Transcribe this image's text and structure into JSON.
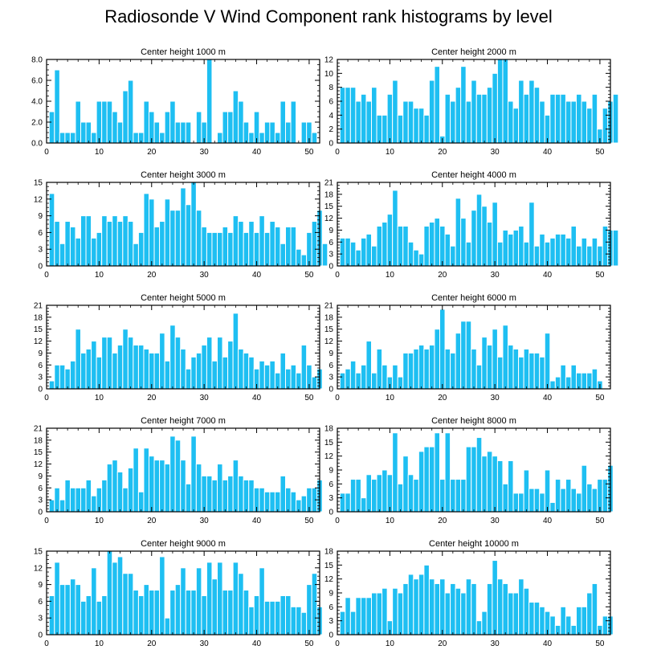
{
  "title": "Radiosonde V Wind Component rank histograms by level",
  "colors": {
    "bar": "#1EBFF2",
    "bar_edge": "#ffffff",
    "axis": "#000000",
    "background": "#ffffff"
  },
  "chart_data": [
    {
      "type": "bar",
      "title": "Center height 1000 m",
      "xlabel": "",
      "ylabel": "",
      "xlim": [
        0,
        52
      ],
      "ylim": [
        0,
        8
      ],
      "yticks": [
        0,
        2,
        4,
        6,
        8
      ],
      "ytick_labels": [
        "0.0",
        "2.0",
        "4.0",
        "6.0",
        "8.0"
      ],
      "xticks": [
        0,
        10,
        20,
        30,
        40,
        50
      ],
      "values": [
        3,
        7,
        1,
        1,
        1,
        4,
        2,
        2,
        1,
        4,
        4,
        4,
        3,
        2,
        5,
        6,
        1,
        1,
        4,
        3,
        2,
        1,
        3,
        4,
        2,
        2,
        2,
        0,
        3,
        2,
        8,
        0,
        1,
        3,
        3,
        5,
        4,
        2,
        1,
        3,
        1,
        2,
        2,
        1,
        4,
        2,
        4,
        0,
        2,
        2,
        1
      ]
    },
    {
      "type": "bar",
      "title": "Center height 2000 m",
      "xlabel": "",
      "ylabel": "",
      "xlim": [
        0,
        52
      ],
      "ylim": [
        0,
        12
      ],
      "yticks": [
        0,
        2,
        4,
        6,
        8,
        10,
        12
      ],
      "ytick_labels": [
        "0",
        "2",
        "4",
        "6",
        "8",
        "10",
        "12"
      ],
      "xticks": [
        0,
        10,
        20,
        30,
        40,
        50
      ],
      "values": [
        8,
        8,
        8,
        6,
        7,
        6,
        8,
        4,
        4,
        7,
        9,
        4,
        6,
        6,
        5,
        5,
        4,
        9,
        11,
        1,
        7,
        6,
        8,
        11,
        6,
        9,
        7,
        7,
        8,
        10,
        12,
        12,
        6,
        5,
        9,
        7,
        9,
        8,
        6,
        4,
        7,
        7,
        7,
        6,
        6,
        7,
        6,
        5,
        7,
        2,
        5,
        6,
        7
      ]
    },
    {
      "type": "bar",
      "title": "Center height 3000 m",
      "xlabel": "",
      "ylabel": "",
      "xlim": [
        0,
        52
      ],
      "ylim": [
        0,
        15
      ],
      "yticks": [
        0,
        3,
        6,
        9,
        12,
        15
      ],
      "ytick_labels": [
        "0",
        "3",
        "6",
        "9",
        "12",
        "15"
      ],
      "xticks": [
        0,
        10,
        20,
        30,
        40,
        50
      ],
      "values": [
        13,
        8,
        4,
        8,
        7,
        5,
        9,
        9,
        5,
        6,
        9,
        8,
        9,
        8,
        9,
        8,
        4,
        6,
        13,
        12,
        7,
        8,
        12,
        10,
        10,
        14,
        11,
        15,
        10,
        7,
        6,
        6,
        6,
        7,
        6,
        9,
        8,
        6,
        8,
        6,
        9,
        6,
        8,
        7,
        4,
        7,
        7,
        3,
        2,
        6,
        8,
        10,
        4
      ]
    },
    {
      "type": "bar",
      "title": "Center height 4000 m",
      "xlabel": "",
      "ylabel": "",
      "xlim": [
        0,
        52
      ],
      "ylim": [
        0,
        21
      ],
      "yticks": [
        0,
        3,
        6,
        9,
        12,
        15,
        18,
        21
      ],
      "ytick_labels": [
        "0",
        "3",
        "6",
        "9",
        "12",
        "15",
        "18",
        "21"
      ],
      "xticks": [
        0,
        10,
        20,
        30,
        40,
        50
      ],
      "values": [
        7,
        7,
        6,
        4,
        7,
        8,
        5,
        10,
        11,
        13,
        19,
        10,
        10,
        6,
        4,
        3,
        10,
        11,
        12,
        10,
        8,
        5,
        17,
        12,
        6,
        14,
        18,
        15,
        11,
        16,
        6,
        9,
        8,
        9,
        10,
        6,
        16,
        5,
        8,
        6,
        7,
        8,
        8,
        7,
        10,
        5,
        7,
        5,
        7,
        5,
        10,
        9,
        9
      ]
    },
    {
      "type": "bar",
      "title": "Center height 5000 m",
      "xlabel": "",
      "ylabel": "",
      "xlim": [
        0,
        52
      ],
      "ylim": [
        0,
        21
      ],
      "yticks": [
        0,
        3,
        6,
        9,
        12,
        15,
        18,
        21
      ],
      "ytick_labels": [
        "0",
        "3",
        "6",
        "9",
        "12",
        "15",
        "18",
        "21"
      ],
      "xticks": [
        0,
        10,
        20,
        30,
        40,
        50
      ],
      "values": [
        2,
        6,
        6,
        5,
        7,
        15,
        9,
        10,
        12,
        8,
        13,
        13,
        9,
        11,
        15,
        13,
        11,
        11,
        10,
        9,
        9,
        14,
        7,
        16,
        13,
        10,
        5,
        8,
        9,
        11,
        13,
        7,
        13,
        8,
        12,
        19,
        10,
        9,
        8,
        5,
        7,
        6,
        7,
        4,
        9,
        5,
        6,
        4,
        11,
        6,
        3,
        5
      ]
    },
    {
      "type": "bar",
      "title": "Center height 6000 m",
      "xlabel": "",
      "ylabel": "",
      "xlim": [
        0,
        52
      ],
      "ylim": [
        0,
        21
      ],
      "yticks": [
        0,
        3,
        6,
        9,
        12,
        15,
        18,
        21
      ],
      "ytick_labels": [
        "0",
        "3",
        "6",
        "9",
        "12",
        "15",
        "18",
        "21"
      ],
      "xticks": [
        0,
        10,
        20,
        30,
        40,
        50
      ],
      "values": [
        4,
        5,
        7,
        4,
        6,
        12,
        4,
        10,
        6,
        3,
        6,
        3,
        9,
        9,
        10,
        11,
        10,
        11,
        15,
        20,
        10,
        9,
        14,
        17,
        17,
        10,
        6,
        13,
        11,
        15,
        8,
        16,
        11,
        10,
        8,
        10,
        9,
        9,
        8,
        14,
        2,
        3,
        6,
        3,
        6,
        4,
        4,
        4,
        5,
        2
      ]
    },
    {
      "type": "bar",
      "title": "Center height 7000 m",
      "xlabel": "",
      "ylabel": "",
      "xlim": [
        0,
        52
      ],
      "ylim": [
        0,
        21
      ],
      "yticks": [
        0,
        3,
        6,
        9,
        12,
        15,
        18,
        21
      ],
      "ytick_labels": [
        "0",
        "3",
        "6",
        "9",
        "12",
        "15",
        "18",
        "21"
      ],
      "xticks": [
        0,
        10,
        20,
        30,
        40,
        50
      ],
      "values": [
        3,
        6,
        3,
        8,
        6,
        6,
        6,
        8,
        4,
        6,
        8,
        12,
        13,
        10,
        6,
        11,
        16,
        5,
        16,
        14,
        13,
        13,
        12,
        19,
        18,
        13,
        7,
        19,
        12,
        9,
        9,
        8,
        12,
        8,
        9,
        13,
        9,
        8,
        8,
        6,
        6,
        5,
        5,
        5,
        9,
        6,
        5,
        3,
        4,
        6,
        6,
        8
      ]
    },
    {
      "type": "bar",
      "title": "Center height 8000 m",
      "xlabel": "",
      "ylabel": "",
      "xlim": [
        0,
        52
      ],
      "ylim": [
        0,
        18
      ],
      "yticks": [
        0,
        3,
        6,
        9,
        12,
        15,
        18
      ],
      "ytick_labels": [
        "0",
        "3",
        "6",
        "9",
        "12",
        "15",
        "18"
      ],
      "xticks": [
        0,
        10,
        20,
        30,
        40,
        50
      ],
      "values": [
        4,
        4,
        7,
        7,
        3,
        8,
        7,
        8,
        9,
        8,
        17,
        6,
        12,
        8,
        7,
        13,
        14,
        14,
        17,
        7,
        17,
        7,
        7,
        7,
        14,
        14,
        16,
        12,
        13,
        12,
        11,
        6,
        11,
        4,
        4,
        9,
        5,
        5,
        4,
        9,
        2,
        7,
        5,
        7,
        5,
        4,
        10,
        6,
        5,
        7,
        7,
        10
      ]
    },
    {
      "type": "bar",
      "title": "Center height 9000 m",
      "xlabel": "",
      "ylabel": "",
      "xlim": [
        0,
        52
      ],
      "ylim": [
        0,
        15
      ],
      "yticks": [
        0,
        3,
        6,
        9,
        12,
        15
      ],
      "ytick_labels": [
        "0",
        "3",
        "6",
        "9",
        "12",
        "15"
      ],
      "xticks": [
        0,
        10,
        20,
        30,
        40,
        50
      ],
      "values": [
        7,
        13,
        9,
        9,
        10,
        9,
        6,
        7,
        12,
        6,
        7,
        15,
        13,
        14,
        11,
        11,
        8,
        7,
        9,
        8,
        8,
        14,
        3,
        8,
        9,
        12,
        8,
        8,
        12,
        7,
        13,
        10,
        13,
        8,
        8,
        13,
        11,
        8,
        5,
        7,
        12,
        6,
        6,
        6,
        7,
        7,
        5,
        5,
        4,
        9,
        11,
        5
      ]
    },
    {
      "type": "bar",
      "title": "Center height 10000 m",
      "xlabel": "",
      "ylabel": "",
      "xlim": [
        0,
        52
      ],
      "ylim": [
        0,
        18
      ],
      "yticks": [
        0,
        3,
        6,
        9,
        12,
        15,
        18
      ],
      "ytick_labels": [
        "0",
        "3",
        "6",
        "9",
        "12",
        "15",
        "18"
      ],
      "xticks": [
        0,
        10,
        20,
        30,
        40,
        50
      ],
      "values": [
        5,
        8,
        5,
        8,
        8,
        8,
        9,
        9,
        10,
        3,
        10,
        9,
        11,
        13,
        12,
        13,
        15,
        12,
        11,
        12,
        9,
        11,
        10,
        9,
        12,
        11,
        3,
        5,
        11,
        16,
        12,
        11,
        9,
        9,
        12,
        10,
        7,
        7,
        6,
        5,
        4,
        2,
        6,
        4,
        2,
        6,
        6,
        9,
        11,
        2,
        4,
        4
      ]
    }
  ]
}
